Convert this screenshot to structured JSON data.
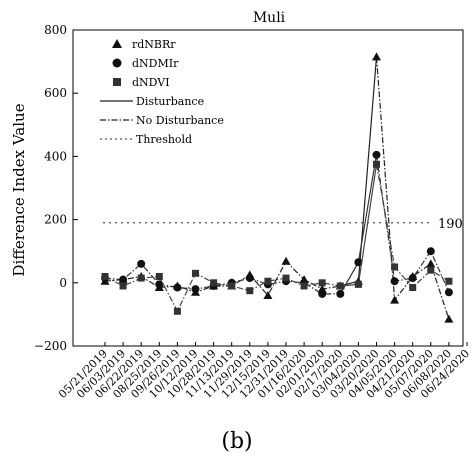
{
  "chart_data": {
    "type": "line",
    "title": "Muli",
    "ylabel": "Difference Index Value",
    "xlabel": "",
    "ylim": [
      -200,
      800
    ],
    "yticks": [
      -200,
      0,
      200,
      400,
      600,
      800
    ],
    "ytick_labels": [
      "−200",
      "0",
      "200",
      "400",
      "600",
      "800"
    ],
    "grid": false,
    "legend_position": "top-left",
    "categories": [
      "05/21/2019",
      "06/03/2019",
      "06/22/2019",
      "08/25/2019",
      "09/26/2019",
      "10/12/2019",
      "10/28/2019",
      "11/13/2019",
      "11/29/2019",
      "12/15/2019",
      "12/31/2019",
      "01/16/2020",
      "02/01/2020",
      "02/17/2020",
      "03/04/2020",
      "03/20/2020",
      "04/05/2020",
      "04/21/2020",
      "05/07/2020",
      "06/08/2020",
      "06/24/2020"
    ],
    "series": [
      {
        "name": "rdNBRr",
        "marker": "triangle",
        "values": [
          5,
          10,
          20,
          -15,
          -10,
          -30,
          -10,
          -10,
          25,
          -40,
          68,
          10,
          -20,
          -10,
          5,
          715,
          -55,
          20,
          60,
          -115,
          null
        ],
        "segments": [
          [
            0,
            13,
            "no-disturbance"
          ],
          [
            13,
            15,
            "disturbance"
          ],
          [
            15,
            19,
            "no-disturbance"
          ]
        ]
      },
      {
        "name": "dNDMIr",
        "marker": "circle",
        "values": [
          15,
          10,
          60,
          -5,
          -15,
          -20,
          -10,
          0,
          15,
          -5,
          5,
          0,
          -35,
          -35,
          65,
          405,
          5,
          15,
          100,
          -30,
          null
        ],
        "segments": [
          [
            0,
            13,
            "no-disturbance"
          ],
          [
            13,
            15,
            "disturbance"
          ],
          [
            15,
            19,
            "no-disturbance"
          ]
        ]
      },
      {
        "name": "dNDVI",
        "marker": "square",
        "values": [
          20,
          -10,
          15,
          20,
          -90,
          30,
          0,
          -10,
          -25,
          5,
          15,
          -10,
          0,
          -10,
          -5,
          375,
          50,
          -15,
          40,
          5,
          null
        ],
        "segments": [
          [
            0,
            13,
            "no-disturbance"
          ],
          [
            13,
            15,
            "disturbance"
          ],
          [
            15,
            19,
            "no-disturbance"
          ]
        ]
      }
    ],
    "threshold": {
      "name": "Threshold",
      "value": 190,
      "label": "190"
    },
    "legend": [
      {
        "key": "rdNBRr",
        "label": "rdNBRr",
        "kind": "triangle"
      },
      {
        "key": "dNDMIr",
        "label": "dNDMIr",
        "kind": "circle"
      },
      {
        "key": "dNDVI",
        "label": "dNDVI",
        "kind": "square"
      },
      {
        "key": "disturbance",
        "label": "Disturbance",
        "kind": "solid"
      },
      {
        "key": "no-disturbance",
        "label": "No Disturbance",
        "kind": "dashdot"
      },
      {
        "key": "threshold",
        "label": "Threshold",
        "kind": "dotted"
      }
    ]
  },
  "caption": "(b)"
}
